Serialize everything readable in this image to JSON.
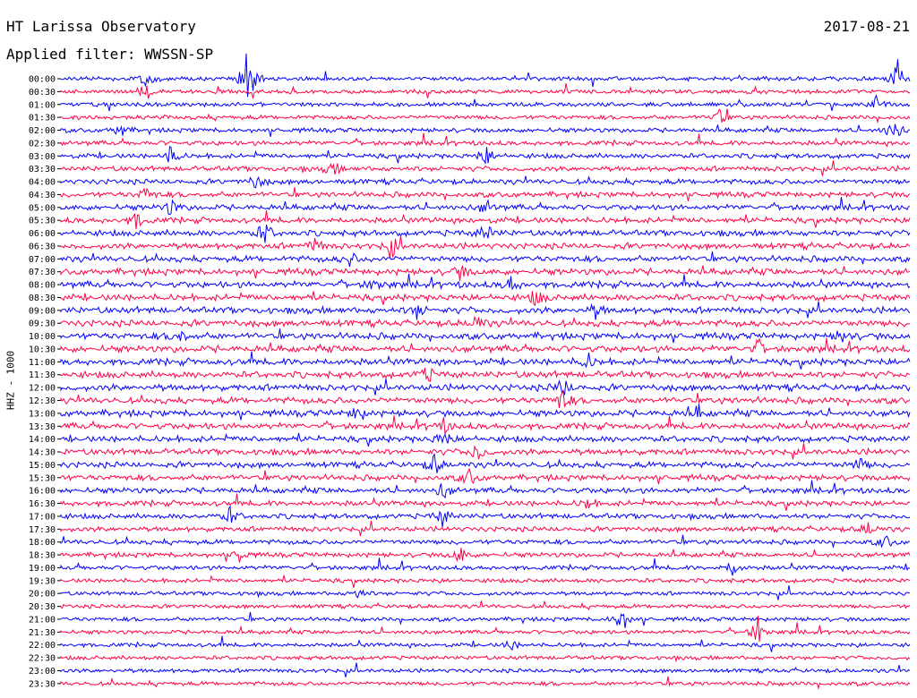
{
  "header": {
    "station": "HT Larissa Observatory",
    "date": "2017-08-21",
    "filter": "Applied filter: WWSSN-SP"
  },
  "channel_label": "HHZ - 1000",
  "colors": {
    "trace_a": "#0000ff",
    "trace_b": "#ff0044",
    "axis": "#000000"
  },
  "chart_data": {
    "type": "line",
    "title": "HT Larissa Observatory",
    "subtitle": "Applied filter: WWSSN-SP",
    "date": "2017-08-21",
    "ylabel": "HHZ - 1000",
    "xlabel": "",
    "grid": false,
    "row_labels": [
      "00:00",
      "00:30",
      "01:00",
      "01:30",
      "02:00",
      "02:30",
      "03:00",
      "03:30",
      "04:00",
      "04:30",
      "05:00",
      "05:30",
      "06:00",
      "06:30",
      "07:00",
      "07:30",
      "08:00",
      "08:30",
      "09:00",
      "09:30",
      "10:00",
      "10:30",
      "11:00",
      "11:30",
      "12:00",
      "12:30",
      "13:00",
      "13:30",
      "14:00",
      "14:30",
      "15:00",
      "15:30",
      "16:00",
      "16:30",
      "17:00",
      "17:30",
      "18:00",
      "18:30",
      "19:00",
      "19:30",
      "20:00",
      "20:30",
      "21:00",
      "21:30",
      "22:00",
      "22:30",
      "23:00",
      "23:30"
    ],
    "row_colors": [
      "blue",
      "red"
    ],
    "events": [
      {
        "row": 0,
        "x": 0.1,
        "amp": 14
      },
      {
        "row": 1,
        "x": 0.1,
        "amp": 10
      },
      {
        "row": 0,
        "x": 0.22,
        "amp": 40
      },
      {
        "row": 0,
        "x": 0.985,
        "amp": 22
      },
      {
        "row": 2,
        "x": 0.96,
        "amp": 10
      },
      {
        "row": 3,
        "x": 0.775,
        "amp": 9
      },
      {
        "row": 4,
        "x": 0.07,
        "amp": 8
      },
      {
        "row": 4,
        "x": 0.98,
        "amp": 18
      },
      {
        "row": 6,
        "x": 0.13,
        "amp": 12
      },
      {
        "row": 6,
        "x": 0.5,
        "amp": 14
      },
      {
        "row": 7,
        "x": 0.32,
        "amp": 9
      },
      {
        "row": 8,
        "x": 0.23,
        "amp": 10
      },
      {
        "row": 9,
        "x": 0.1,
        "amp": 9
      },
      {
        "row": 10,
        "x": 0.13,
        "amp": 10
      },
      {
        "row": 10,
        "x": 0.5,
        "amp": 9
      },
      {
        "row": 11,
        "x": 0.09,
        "amp": 10
      },
      {
        "row": 12,
        "x": 0.24,
        "amp": 14
      },
      {
        "row": 12,
        "x": 0.5,
        "amp": 12
      },
      {
        "row": 13,
        "x": 0.3,
        "amp": 10
      },
      {
        "row": 13,
        "x": 0.39,
        "amp": 12
      },
      {
        "row": 14,
        "x": 0.34,
        "amp": 8
      },
      {
        "row": 15,
        "x": 0.47,
        "amp": 9
      },
      {
        "row": 16,
        "x": 0.37,
        "amp": 8
      },
      {
        "row": 16,
        "x": 0.53,
        "amp": 9
      },
      {
        "row": 17,
        "x": 0.56,
        "amp": 10
      },
      {
        "row": 18,
        "x": 0.42,
        "amp": 10
      },
      {
        "row": 18,
        "x": 0.63,
        "amp": 9
      },
      {
        "row": 19,
        "x": 0.49,
        "amp": 10
      },
      {
        "row": 20,
        "x": 0.14,
        "amp": 9
      },
      {
        "row": 20,
        "x": 0.92,
        "amp": 9
      },
      {
        "row": 21,
        "x": 0.82,
        "amp": 9
      },
      {
        "row": 22,
        "x": 0.62,
        "amp": 9
      },
      {
        "row": 23,
        "x": 0.43,
        "amp": 10
      },
      {
        "row": 24,
        "x": 0.59,
        "amp": 12
      },
      {
        "row": 25,
        "x": 0.59,
        "amp": 14
      },
      {
        "row": 26,
        "x": 0.35,
        "amp": 10
      },
      {
        "row": 26,
        "x": 0.75,
        "amp": 8
      },
      {
        "row": 27,
        "x": 0.45,
        "amp": 8
      },
      {
        "row": 28,
        "x": 0.45,
        "amp": 10
      },
      {
        "row": 29,
        "x": 0.49,
        "amp": 12
      },
      {
        "row": 30,
        "x": 0.44,
        "amp": 12
      },
      {
        "row": 30,
        "x": 0.94,
        "amp": 8
      },
      {
        "row": 31,
        "x": 0.48,
        "amp": 10
      },
      {
        "row": 32,
        "x": 0.45,
        "amp": 10
      },
      {
        "row": 33,
        "x": 0.62,
        "amp": 8
      },
      {
        "row": 34,
        "x": 0.2,
        "amp": 10
      },
      {
        "row": 34,
        "x": 0.45,
        "amp": 12
      },
      {
        "row": 35,
        "x": 0.95,
        "amp": 8
      },
      {
        "row": 36,
        "x": 0.97,
        "amp": 8
      },
      {
        "row": 37,
        "x": 0.47,
        "amp": 10
      },
      {
        "row": 37,
        "x": 0.21,
        "amp": 8
      },
      {
        "row": 38,
        "x": 0.79,
        "amp": 10
      },
      {
        "row": 40,
        "x": 0.35,
        "amp": 6
      },
      {
        "row": 42,
        "x": 0.66,
        "amp": 16
      },
      {
        "row": 43,
        "x": 0.82,
        "amp": 18
      },
      {
        "row": 44,
        "x": 0.53,
        "amp": 6
      }
    ]
  }
}
